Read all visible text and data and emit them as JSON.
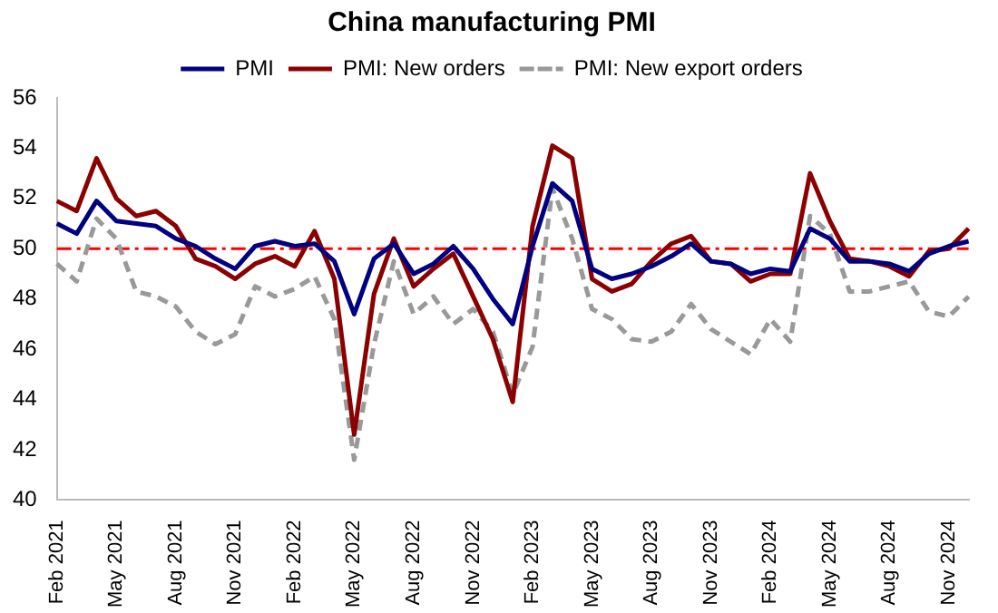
{
  "chart_data": {
    "type": "line",
    "title": "China manufacturing PMI",
    "categories": [
      "Feb 2021",
      null,
      null,
      "May 2021",
      null,
      null,
      "Aug 2021",
      null,
      null,
      "Nov 2021",
      null,
      null,
      "Feb 2022",
      null,
      null,
      "May 2022",
      null,
      null,
      "Aug 2022",
      null,
      null,
      "Nov 2022",
      null,
      null,
      "Feb 2023",
      null,
      null,
      "May 2023",
      null,
      null,
      "Aug 2023",
      null,
      null,
      "Nov 2023",
      null,
      null,
      "Feb 2024",
      null,
      null,
      "May 2024",
      null,
      null,
      "Aug 2024",
      null,
      null,
      "Nov 2024",
      null
    ],
    "series": [
      {
        "name": "PMI",
        "color": "#000080",
        "line_style": "solid",
        "values": [
          51.0,
          50.6,
          51.9,
          51.1,
          51.0,
          50.9,
          50.4,
          50.1,
          49.6,
          49.2,
          50.1,
          50.3,
          50.1,
          50.2,
          49.5,
          47.4,
          49.6,
          50.2,
          49.0,
          49.4,
          50.1,
          49.2,
          48.0,
          47.0,
          50.1,
          52.6,
          51.9,
          49.2,
          48.8,
          49.0,
          49.3,
          49.7,
          50.2,
          49.5,
          49.4,
          49.0,
          49.2,
          49.1,
          50.8,
          50.4,
          49.5,
          49.5,
          49.4,
          49.1,
          49.8,
          50.1,
          50.3
        ]
      },
      {
        "name": "PMI: New orders",
        "color": "#8b0000",
        "line_style": "solid",
        "values": [
          51.9,
          51.5,
          53.6,
          52.0,
          51.3,
          51.5,
          50.9,
          49.6,
          49.3,
          48.8,
          49.4,
          49.7,
          49.3,
          50.7,
          48.8,
          42.6,
          48.2,
          50.4,
          48.5,
          49.2,
          49.8,
          48.1,
          46.4,
          43.9,
          50.9,
          54.1,
          53.6,
          48.8,
          48.3,
          48.6,
          49.5,
          50.2,
          50.5,
          49.5,
          49.4,
          48.7,
          49.0,
          49.0,
          53.0,
          51.1,
          49.6,
          49.5,
          49.3,
          48.9,
          49.9,
          50.0,
          50.8
        ]
      },
      {
        "name": "PMI: New export orders",
        "color": "#999999",
        "line_style": "dashed",
        "values": [
          49.4,
          48.7,
          51.2,
          50.4,
          48.3,
          48.1,
          47.7,
          46.7,
          46.2,
          46.6,
          48.5,
          48.1,
          48.4,
          48.9,
          47.2,
          41.6,
          46.2,
          49.5,
          47.4,
          48.1,
          47.0,
          47.6,
          46.7,
          44.2,
          46.1,
          52.4,
          50.4,
          47.6,
          47.2,
          46.4,
          46.3,
          46.7,
          47.8,
          46.8,
          46.3,
          45.8,
          47.2,
          46.3,
          51.3,
          50.6,
          48.3,
          48.3,
          48.5,
          48.7,
          47.5,
          47.3,
          48.1
        ]
      }
    ],
    "ylim": [
      40,
      56
    ],
    "yticks": [
      40,
      42,
      44,
      46,
      48,
      50,
      52,
      54,
      56
    ],
    "ref_lines": [
      {
        "axis": "y",
        "value": 50,
        "color": "#ff0000",
        "line_style": "dashdot"
      }
    ],
    "grid": false,
    "legend": "top",
    "marker": "none"
  }
}
